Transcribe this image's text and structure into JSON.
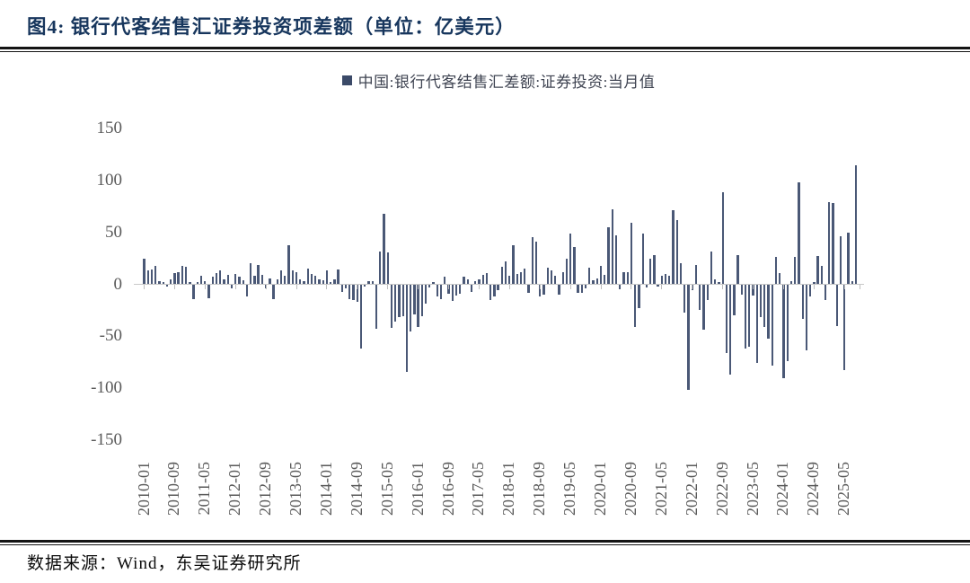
{
  "header": {
    "title": "图4:  银行代客结售汇证券投资项差额（单位：亿美元）"
  },
  "legend": {
    "label": "中国:银行代客结售汇差额:证券投资:当月值"
  },
  "footer": {
    "source": "数据来源：Wind，东吴证券研究所"
  },
  "colors": {
    "title": "#17365d",
    "bar": "#4a5876",
    "legend_swatch": "#3b4a68",
    "legend_text": "#3f4452",
    "axis_label": "#595959",
    "axis_line": "#c9c9c9",
    "tick_mark": "#bdbdbd",
    "rule": "#131313",
    "source_text": "#0a0a0a"
  },
  "chart_data": {
    "type": "bar",
    "series_name": "中国:银行代客结售汇差额:证券投资:当月值",
    "unit": "亿美元",
    "start_month": "2010-01",
    "frequency": "monthly",
    "values": [
      25,
      13,
      14,
      18,
      3,
      2,
      -2,
      5,
      11,
      12,
      18,
      17,
      2,
      -14,
      2,
      8,
      3,
      -13,
      7,
      11,
      13,
      5,
      9,
      -4,
      10,
      7,
      4,
      -12,
      20,
      8,
      19,
      9,
      -4,
      6,
      -14,
      5,
      13,
      8,
      38,
      13,
      12,
      5,
      3,
      15,
      10,
      8,
      5,
      4,
      13,
      2,
      5,
      14,
      -7,
      -4,
      -14,
      -15,
      -17,
      -62,
      -2,
      3,
      3,
      -43,
      32,
      68,
      31,
      -42,
      -36,
      -32,
      -31,
      -84,
      -45,
      -29,
      -41,
      -31,
      -19,
      -3,
      2,
      -12,
      -14,
      7,
      -9,
      -16,
      -11,
      -9,
      7,
      5,
      -7,
      3,
      5,
      9,
      11,
      -15,
      -12,
      -6,
      17,
      22,
      8,
      38,
      10,
      12,
      15,
      -8,
      45,
      41,
      -12,
      -10,
      16,
      13,
      8,
      -10,
      12,
      25,
      49,
      36,
      -8,
      -8,
      -4,
      16,
      4,
      6,
      18,
      9,
      55,
      72,
      47,
      -5,
      12,
      12,
      59,
      -41,
      -23,
      49,
      -3,
      25,
      28,
      -2,
      8,
      10,
      8,
      71,
      62,
      20,
      -27,
      -102,
      -6,
      19,
      -25,
      -44,
      -15,
      32,
      5,
      2,
      89,
      -66,
      -87,
      -30,
      28,
      -10,
      -62,
      -60,
      -11,
      -76,
      -32,
      -41,
      -52,
      -78,
      26,
      11,
      -90,
      -74,
      3,
      26,
      98,
      -33,
      -64,
      -12,
      2,
      27,
      18,
      -15,
      79,
      78,
      -40,
      46,
      -83,
      50,
      3,
      115
    ],
    "x_tick_labels": [
      "2010-01",
      "2010-09",
      "2011-05",
      "2012-01",
      "2012-09",
      "2013-05",
      "2014-01",
      "2014-09",
      "2015-05",
      "2016-01",
      "2016-09",
      "2017-05",
      "2018-01",
      "2018-09",
      "2019-05",
      "2020-01",
      "2020-09",
      "2021-05",
      "2022-01",
      "2022-09",
      "2023-05",
      "2024-01",
      "2024-09",
      "2025-05"
    ],
    "x_tick_every": 8,
    "y_ticks": [
      150,
      100,
      50,
      0,
      -50,
      -100,
      -150
    ],
    "ylim": [
      -150,
      150
    ],
    "grid": false,
    "legend_position": "top-center"
  }
}
